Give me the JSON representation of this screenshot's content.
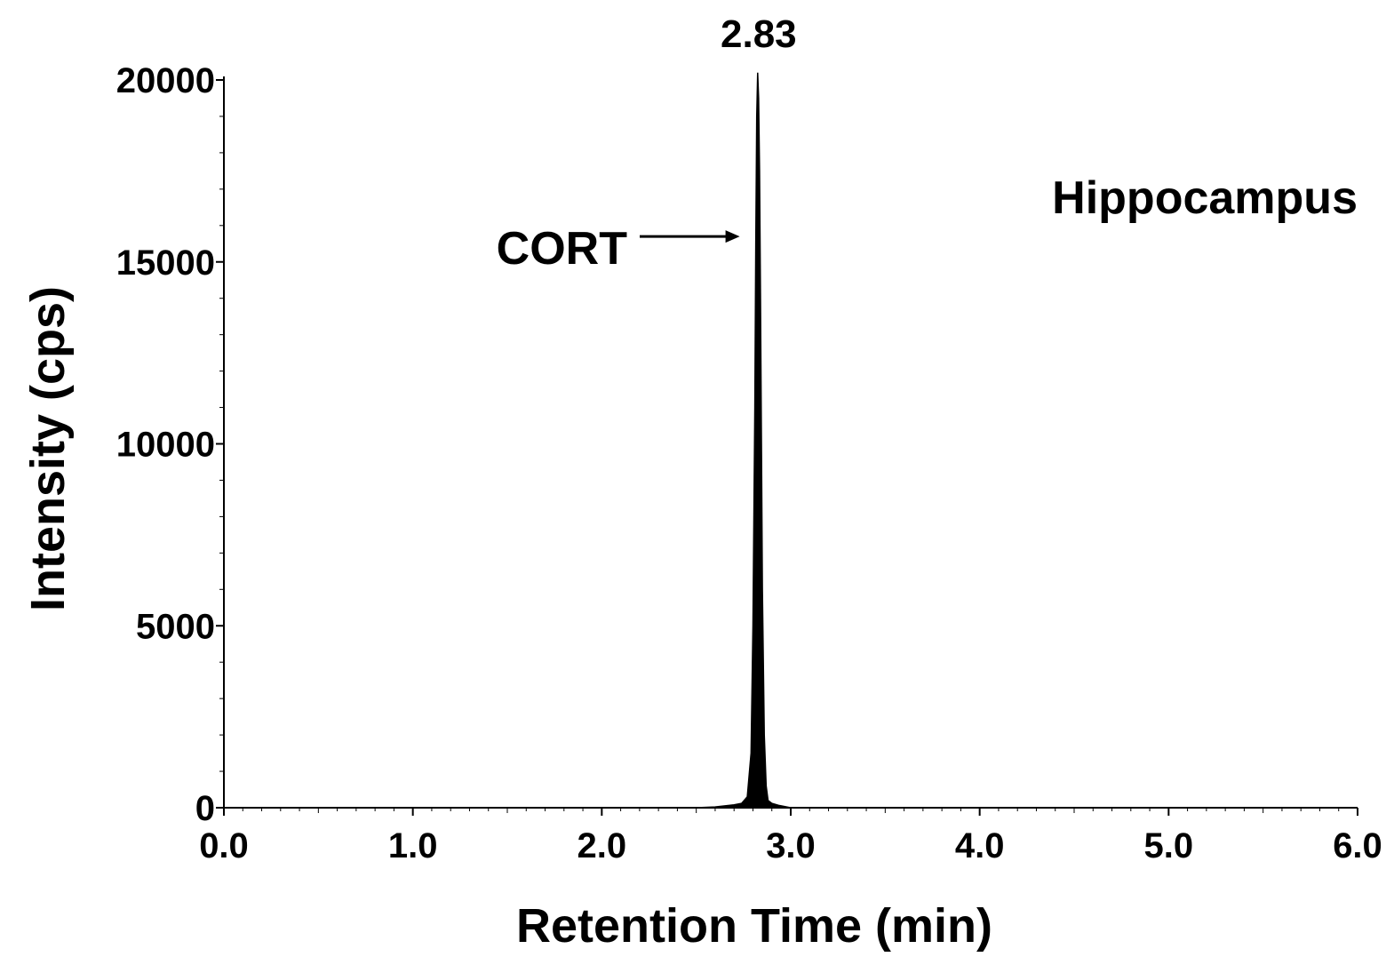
{
  "chart_data": {
    "type": "line",
    "title": "",
    "xlabel": "Retention Time (min)",
    "ylabel": "Intensity (cps)",
    "xlim": [
      0,
      6
    ],
    "ylim": [
      0,
      20000
    ],
    "x_ticks": [
      "0.0",
      "1.0",
      "2.0",
      "3.0",
      "4.0",
      "5.0",
      "6.0"
    ],
    "y_ticks": [
      "0",
      "5000",
      "10000",
      "15000",
      "20000"
    ],
    "x_minor_step": 0.1,
    "y_minor_step": 1000,
    "grid": false,
    "fill_under_peak": true,
    "peak_label": "2.83",
    "panel_label": "Hippocampus",
    "annotation": {
      "text": "CORT",
      "points_to_x": 2.73,
      "points_to_y": 15700
    },
    "series": [
      {
        "x": [
          0.0,
          2.5,
          2.6,
          2.7,
          2.74,
          2.77,
          2.79,
          2.8,
          2.81,
          2.815,
          2.82,
          2.825,
          2.83,
          2.835,
          2.84,
          2.845,
          2.85,
          2.86,
          2.87,
          2.88,
          2.9,
          2.94,
          3.0,
          6.0
        ],
        "y": [
          0,
          0,
          20,
          80,
          120,
          300,
          1500,
          5000,
          11000,
          15500,
          19000,
          20200,
          19500,
          17500,
          14000,
          10000,
          6000,
          2000,
          600,
          200,
          120,
          60,
          0,
          0
        ]
      }
    ]
  }
}
